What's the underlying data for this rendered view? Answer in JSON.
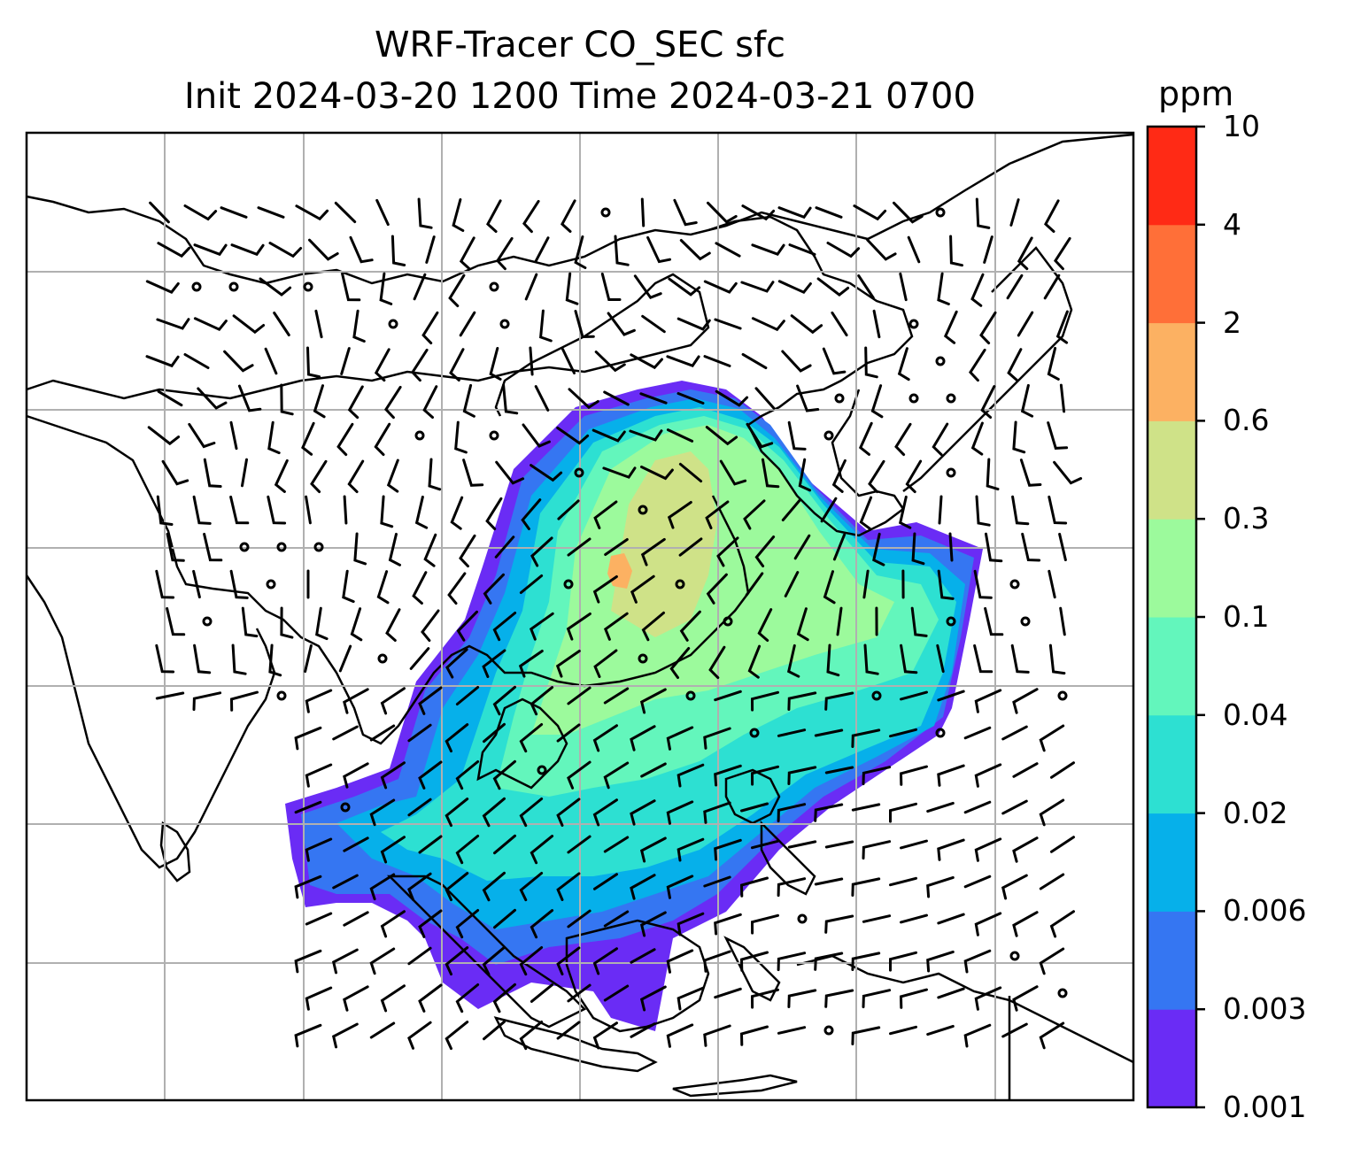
{
  "title": {
    "line1": "WRF-Tracer CO_SEC sfc",
    "line2": "Init 2024-03-20 1200 Time 2024-03-21 0700"
  },
  "colorbar": {
    "unit": "ppm",
    "levels": [
      "0.001",
      "0.003",
      "0.006",
      "0.02",
      "0.04",
      "0.1",
      "0.3",
      "0.6",
      "2",
      "4",
      "10"
    ],
    "colors": [
      "#6a2cf5",
      "#3576f2",
      "#06b0ea",
      "#2de0d2",
      "#63f6bc",
      "#9cfa9c",
      "#cfe288",
      "#fcb162",
      "#ff6f38",
      "#ff2a15"
    ]
  },
  "map": {
    "gridlines": true,
    "wind_barbs": true,
    "calm_marker": "circle"
  }
}
